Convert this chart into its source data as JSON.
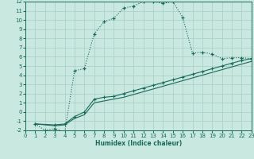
{
  "xlabel": "Humidex (Indice chaleur)",
  "bg_color": "#c8e8e0",
  "grid_color": "#a8ccc4",
  "line_color": "#1a6a5a",
  "xlim": [
    0,
    23
  ],
  "ylim": [
    -2,
    12
  ],
  "xticks": [
    0,
    1,
    2,
    3,
    4,
    5,
    6,
    7,
    8,
    9,
    10,
    11,
    12,
    13,
    14,
    15,
    16,
    17,
    18,
    19,
    20,
    21,
    22,
    23
  ],
  "yticks": [
    -2,
    -1,
    0,
    1,
    2,
    3,
    4,
    5,
    6,
    7,
    8,
    9,
    10,
    11,
    12
  ],
  "curve1_x": [
    1,
    2,
    3,
    4,
    5,
    6,
    7,
    8,
    9,
    10,
    11,
    12,
    13,
    14,
    15,
    16,
    17,
    18,
    19,
    20,
    21,
    22,
    23
  ],
  "curve1_y": [
    -1.3,
    -2.0,
    -1.8,
    -2.2,
    4.5,
    4.7,
    8.5,
    9.8,
    10.2,
    11.3,
    11.5,
    12.0,
    12.0,
    11.8,
    12.0,
    10.3,
    6.4,
    6.5,
    6.3,
    5.8,
    5.9,
    5.9,
    5.8
  ],
  "curve2_x": [
    1,
    3,
    4,
    5,
    6,
    7,
    8,
    9,
    10,
    11,
    12,
    13,
    14,
    15,
    16,
    17,
    18,
    19,
    20,
    21,
    22,
    23
  ],
  "curve2_y": [
    -1.3,
    -1.4,
    -1.3,
    -0.5,
    0.0,
    1.4,
    1.6,
    1.7,
    2.0,
    2.3,
    2.6,
    2.9,
    3.2,
    3.5,
    3.8,
    4.1,
    4.4,
    4.7,
    5.0,
    5.3,
    5.6,
    5.8
  ],
  "curve3_x": [
    1,
    3,
    4,
    5,
    6,
    7,
    8,
    9,
    10,
    11,
    12,
    13,
    14,
    15,
    16,
    17,
    18,
    19,
    20,
    21,
    22,
    23
  ],
  "curve3_y": [
    -1.3,
    -1.5,
    -1.4,
    -0.7,
    -0.3,
    1.0,
    1.2,
    1.4,
    1.6,
    1.9,
    2.2,
    2.5,
    2.8,
    3.1,
    3.4,
    3.7,
    4.0,
    4.3,
    4.6,
    4.9,
    5.2,
    5.5
  ],
  "tick_fontsize": 5,
  "xlabel_fontsize": 5.5
}
